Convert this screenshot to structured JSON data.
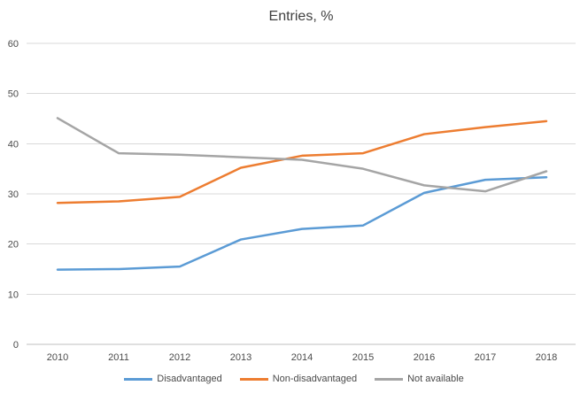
{
  "chart_data": {
    "type": "line",
    "title": "Entries, %",
    "categories": [
      "2010",
      "2011",
      "2012",
      "2013",
      "2014",
      "2015",
      "2016",
      "2017",
      "2018"
    ],
    "series": [
      {
        "name": "Disadvantaged",
        "color": "#5B9BD5",
        "values": [
          14.9,
          15.0,
          15.5,
          20.9,
          23.0,
          23.7,
          30.2,
          32.8,
          33.3
        ]
      },
      {
        "name": "Non-disadvantaged",
        "color": "#ED7D31",
        "values": [
          28.2,
          28.5,
          29.4,
          35.2,
          37.6,
          38.1,
          41.9,
          43.3,
          44.5
        ]
      },
      {
        "name": "Not available",
        "color": "#A5A5A5",
        "values": [
          45.1,
          38.1,
          37.8,
          37.3,
          36.8,
          35.0,
          31.7,
          30.5,
          34.5
        ]
      }
    ],
    "xlabel": "",
    "ylabel": "",
    "ylim": [
      0,
      60
    ],
    "yticks": [
      0,
      10,
      20,
      30,
      40,
      50,
      60
    ],
    "grid": "horizontal",
    "legend_position": "bottom",
    "colors": {
      "gridline": "#D9D9D9",
      "axis_line": "#BFBFBF",
      "tick_text": "#4a4a4a",
      "title_text": "#3f3f3f"
    }
  }
}
